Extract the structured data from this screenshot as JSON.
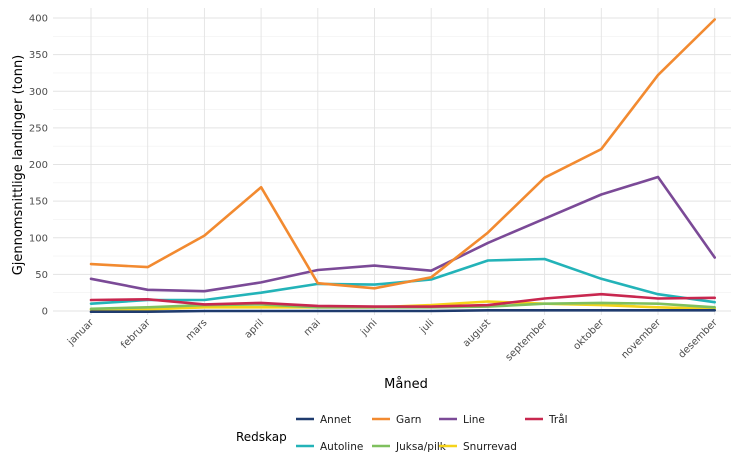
{
  "chart_data": {
    "type": "line",
    "title": "",
    "xlabel": "Måned",
    "ylabel": "Gjennomsnittlige landinger (tonn)",
    "ylim": [
      0,
      410
    ],
    "yticks": [
      0,
      50,
      100,
      150,
      200,
      250,
      300,
      350,
      400
    ],
    "ytick_labels": [
      "0",
      "50",
      "100",
      "150",
      "200",
      "250",
      "300",
      "350",
      "400"
    ],
    "categories": [
      "januar",
      "februar",
      "mars",
      "april",
      "mai",
      "juni",
      "juli",
      "august",
      "september",
      "oktober",
      "november",
      "desember"
    ],
    "grid": true,
    "legend": {
      "title": "Redskap",
      "position": "bottom"
    },
    "series": [
      {
        "name": "Annet",
        "color": "#1f3b6e",
        "values": [
          -1,
          -1,
          0,
          0,
          0,
          0,
          0,
          1,
          1,
          1,
          1,
          1
        ]
      },
      {
        "name": "Garn",
        "color": "#f28a30",
        "values": [
          64,
          60,
          103,
          169,
          38,
          31,
          46,
          107,
          182,
          221,
          322,
          398
        ]
      },
      {
        "name": "Line",
        "color": "#7b4a97",
        "values": [
          44,
          29,
          27,
          39,
          56,
          62,
          55,
          93,
          126,
          159,
          183,
          73
        ]
      },
      {
        "name": "Trål",
        "color": "#c8274f",
        "values": [
          15,
          16,
          9,
          11,
          7,
          6,
          6,
          8,
          17,
          23,
          17,
          18
        ]
      },
      {
        "name": "Autoline",
        "color": "#23b3b8",
        "values": [
          10,
          15,
          15,
          25,
          37,
          36,
          43,
          69,
          71,
          44,
          23,
          12
        ]
      },
      {
        "name": "Juksa/pilk",
        "color": "#7fc05e",
        "values": [
          3,
          5,
          8,
          9,
          5,
          5,
          5,
          6,
          10,
          11,
          10,
          5
        ]
      },
      {
        "name": "Snurrevad",
        "color": "#f5d31a",
        "values": [
          2,
          2,
          5,
          5,
          5,
          5,
          8,
          13,
          10,
          8,
          5,
          3
        ]
      }
    ]
  }
}
